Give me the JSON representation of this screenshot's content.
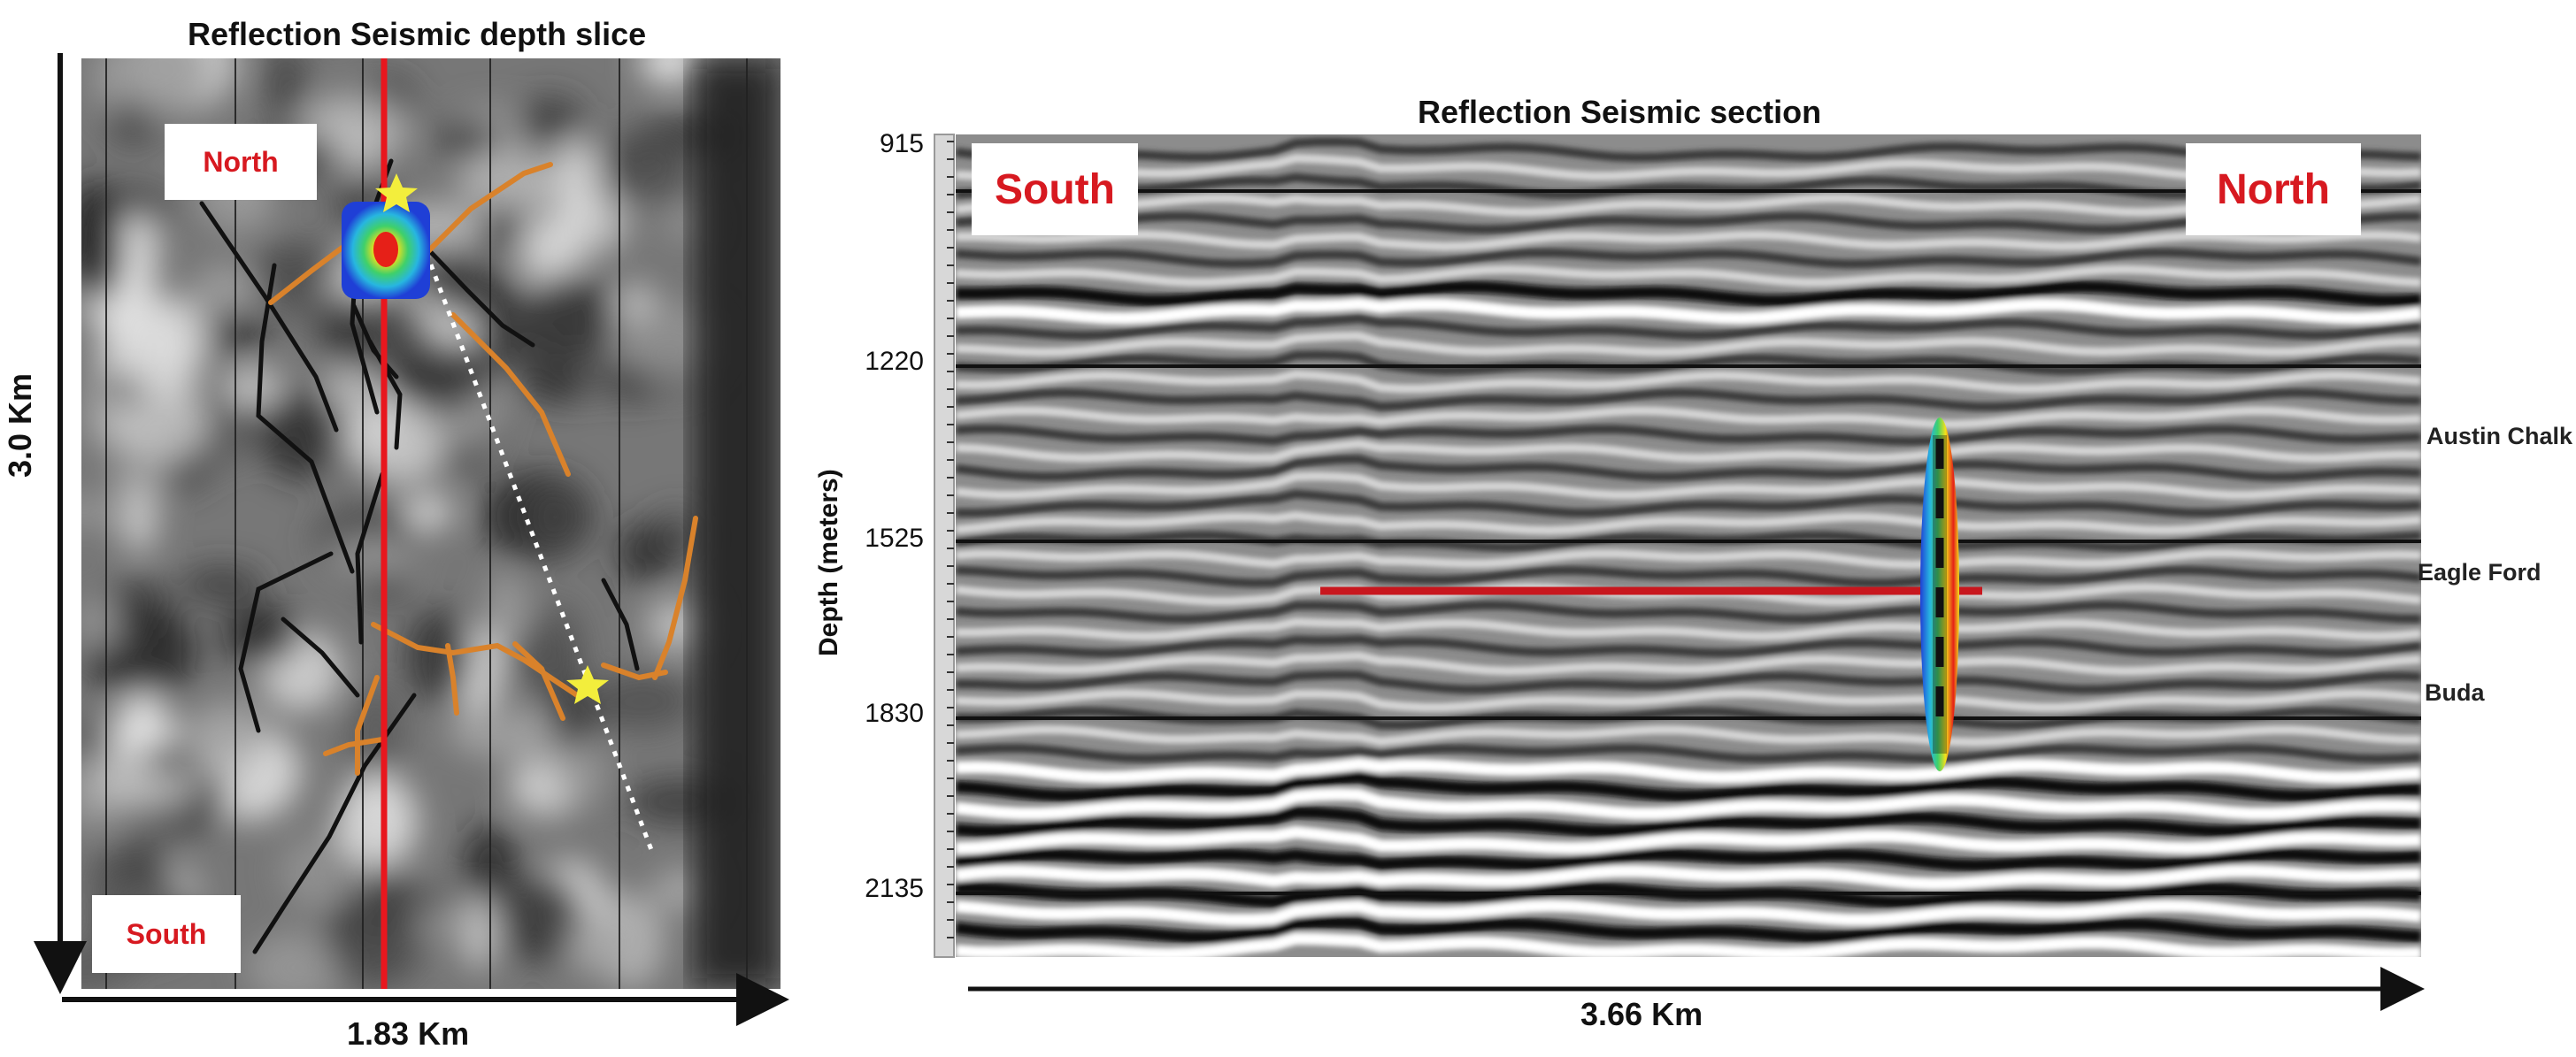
{
  "left_panel": {
    "title": "Reflection Seismic  depth slice",
    "north_label": "North",
    "south_label": "South",
    "horizontal_scale": "1.83 Km",
    "vertical_scale": "3.0 Km"
  },
  "right_panel": {
    "title": "Reflection Seismic section",
    "south_label": "South",
    "north_label": "North",
    "y_axis_label": "Depth (meters)",
    "depth_ticks": [
      "915",
      "1220",
      "1525",
      "1830",
      "2135"
    ],
    "horizontal_scale": "3.66 Km",
    "formations": [
      "Austin Chalk",
      "Eagle Ford",
      "Buda"
    ]
  },
  "colors": {
    "north_south_label": "#d71920",
    "well_path": "#c8171e",
    "fault_orange": "#d9822b",
    "fault_black": "#111111",
    "star": "#f3ee3c",
    "microseismic_low": "#1f3fd6",
    "microseismic_high": "#e62018"
  }
}
